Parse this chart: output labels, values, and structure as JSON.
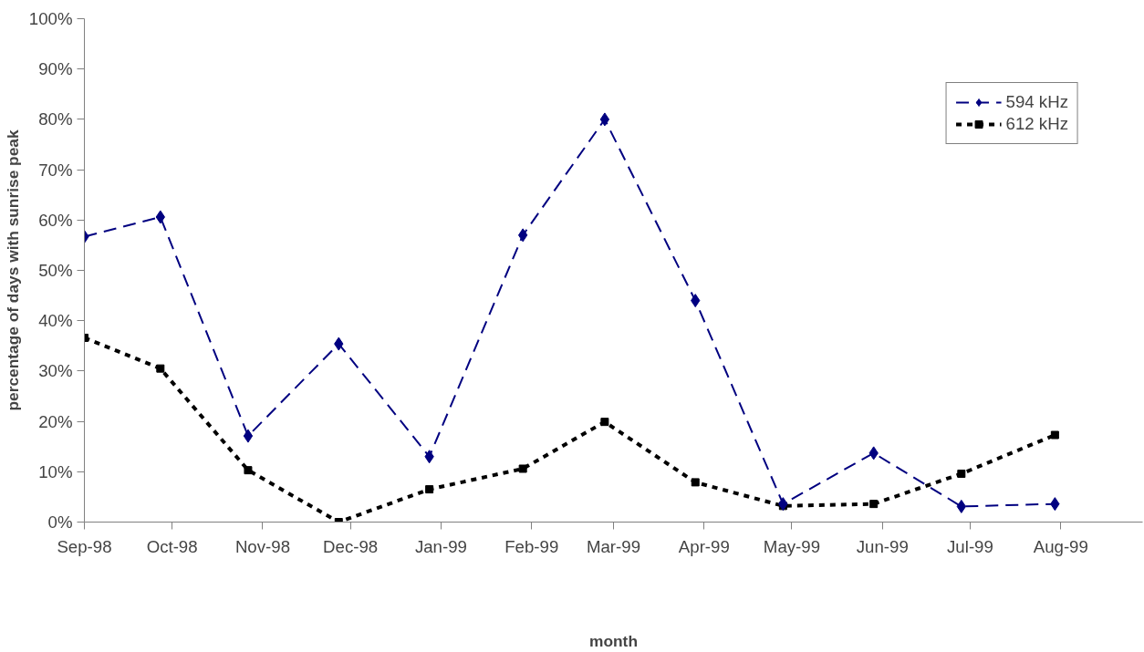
{
  "chart_data": {
    "type": "line",
    "xlabel": "month",
    "ylabel": "percentage of days with sunrise peak",
    "x": [
      "1998-09-01",
      "1998-09-27",
      "1998-10-27",
      "1998-11-27",
      "1998-12-28",
      "1999-01-29",
      "1999-02-26",
      "1999-03-29",
      "1999-04-28",
      "1999-05-29",
      "1999-06-28",
      "1999-07-30"
    ],
    "series": [
      {
        "name": "594 kHz",
        "color": "#000080",
        "marker": "diamond",
        "line_style": "dashed",
        "values": [
          56.7,
          60.6,
          17.1,
          35.4,
          13,
          57,
          80,
          44,
          3.6,
          13.7,
          3.1,
          3.6
        ]
      },
      {
        "name": "612 kHz",
        "color": "#000000",
        "marker": "square",
        "line_style": "dotted",
        "values": [
          36.6,
          30.5,
          10.3,
          0,
          6.5,
          10.6,
          19.9,
          7.9,
          3.2,
          3.6,
          9.6,
          17.3
        ]
      }
    ],
    "xlim": [
      "1998-09-01",
      "1999-08-29"
    ],
    "xticks": [
      {
        "value": "1998-09-01",
        "label": "Sep-98"
      },
      {
        "value": "1998-10-01",
        "label": "Oct-98"
      },
      {
        "value": "1998-11-01",
        "label": "Nov-98"
      },
      {
        "value": "1998-12-01",
        "label": "Dec-98"
      },
      {
        "value": "1999-01-01",
        "label": "Jan-99"
      },
      {
        "value": "1999-02-01",
        "label": "Feb-99"
      },
      {
        "value": "1999-03-01",
        "label": "Mar-99"
      },
      {
        "value": "1999-04-01",
        "label": "Apr-99"
      },
      {
        "value": "1999-05-01",
        "label": "May-99"
      },
      {
        "value": "1999-06-01",
        "label": "Jun-99"
      },
      {
        "value": "1999-07-01",
        "label": "Jul-99"
      },
      {
        "value": "1999-08-01",
        "label": "Aug-99"
      }
    ],
    "ylim": [
      0,
      100
    ],
    "yticks": [
      {
        "value": 0,
        "label": "0%"
      },
      {
        "value": 10,
        "label": "10%"
      },
      {
        "value": 20,
        "label": "20%"
      },
      {
        "value": 30,
        "label": "30%"
      },
      {
        "value": 40,
        "label": "40%"
      },
      {
        "value": 50,
        "label": "50%"
      },
      {
        "value": 60,
        "label": "60%"
      },
      {
        "value": 70,
        "label": "70%"
      },
      {
        "value": 80,
        "label": "80%"
      },
      {
        "value": 90,
        "label": "90%"
      },
      {
        "value": 100,
        "label": "100%"
      }
    ],
    "grid": false,
    "legend": "top right"
  }
}
